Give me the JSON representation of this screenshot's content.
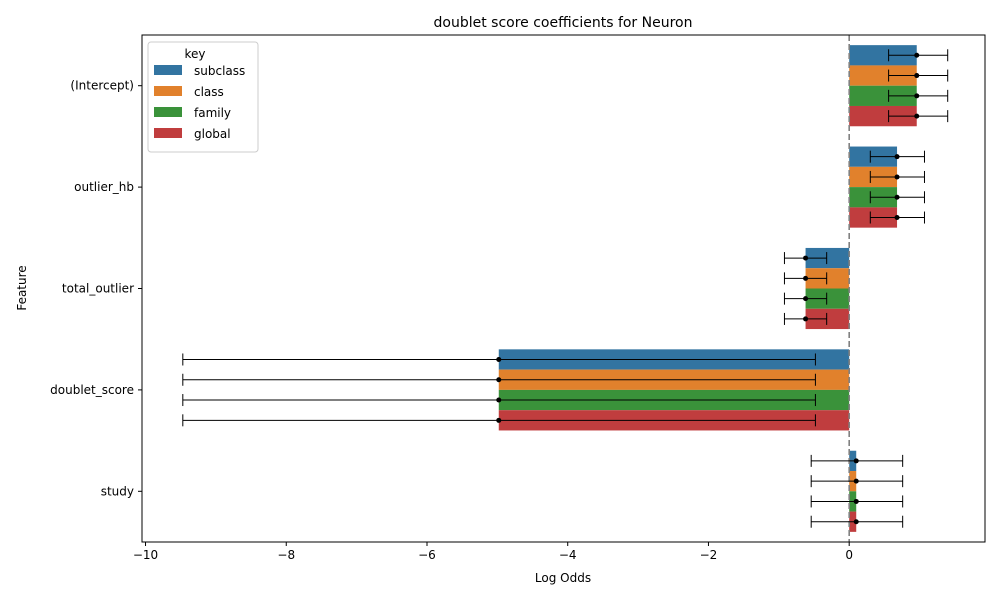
{
  "chart_data": {
    "type": "bar",
    "orientation": "horizontal",
    "title": "doublet score coefficients for Neuron",
    "xlabel": "Log Odds",
    "ylabel": "Feature",
    "xlim": [
      -10.05,
      1.93
    ],
    "xticks": [
      -10,
      -8,
      -6,
      -4,
      -2,
      0
    ],
    "xtick_labels": [
      "−10",
      "−8",
      "−6",
      "−4",
      "−2",
      "0"
    ],
    "reference_line": {
      "x": 0,
      "style": "dashed",
      "color": "#808080"
    },
    "categories": [
      "(Intercept)",
      "outlier_hb",
      "total_outlier",
      "doublet_score",
      "study"
    ],
    "legend": {
      "title": "key",
      "position": "upper-left"
    },
    "series": [
      {
        "name": "subclass",
        "color": "#3274a1",
        "values": [
          0.96,
          0.68,
          -0.62,
          -4.98,
          0.1
        ],
        "error_low": [
          0.56,
          0.3,
          -0.92,
          -9.47,
          -0.54
        ],
        "error_high": [
          1.4,
          1.07,
          -0.32,
          -0.48,
          0.76
        ]
      },
      {
        "name": "class",
        "color": "#e1812c",
        "values": [
          0.96,
          0.68,
          -0.62,
          -4.98,
          0.1
        ],
        "error_low": [
          0.56,
          0.3,
          -0.92,
          -9.47,
          -0.54
        ],
        "error_high": [
          1.4,
          1.07,
          -0.32,
          -0.48,
          0.76
        ]
      },
      {
        "name": "family",
        "color": "#3a923a",
        "values": [
          0.96,
          0.68,
          -0.62,
          -4.98,
          0.1
        ],
        "error_low": [
          0.56,
          0.3,
          -0.92,
          -9.47,
          -0.54
        ],
        "error_high": [
          1.4,
          1.07,
          -0.32,
          -0.48,
          0.76
        ]
      },
      {
        "name": "global",
        "color": "#c03d3e",
        "values": [
          0.96,
          0.68,
          -0.62,
          -4.98,
          0.1
        ],
        "error_low": [
          0.56,
          0.3,
          -0.92,
          -9.47,
          -0.54
        ],
        "error_high": [
          1.4,
          1.07,
          -0.32,
          -0.48,
          0.76
        ]
      }
    ]
  }
}
